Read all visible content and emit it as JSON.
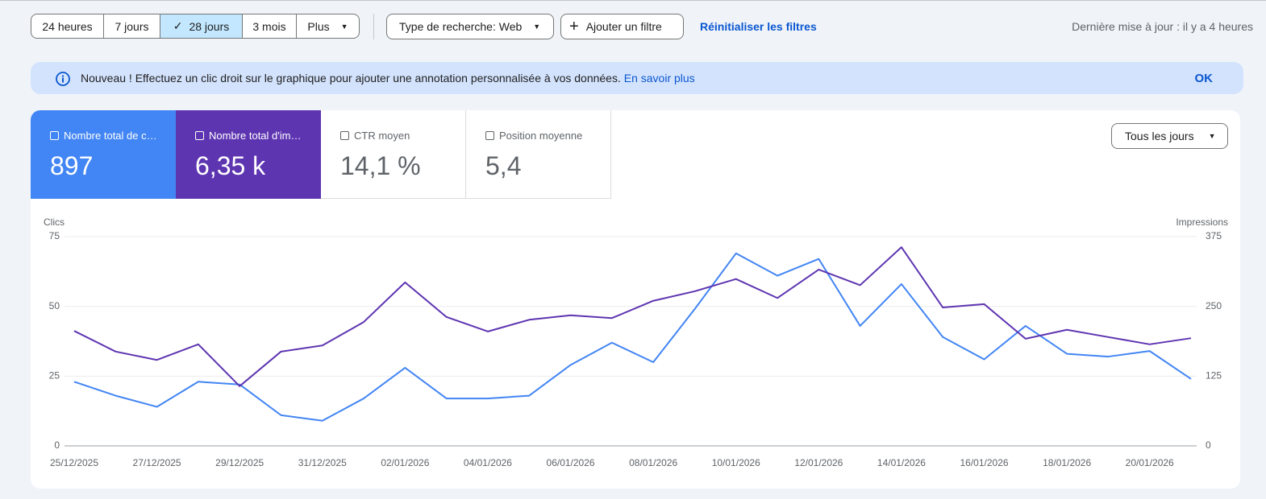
{
  "toolbar": {
    "ranges": [
      "24 heures",
      "7 jours",
      "28 jours",
      "3 mois",
      "Plus"
    ],
    "search_type": "Type de recherche: Web",
    "add_filter": "Ajouter un filtre",
    "reset": "Réinitialiser les filtres",
    "last_update": "Dernière mise à jour : il y a 4 heures"
  },
  "banner": {
    "text": "Nouveau ! Effectuez un clic droit sur le graphique pour ajouter une annotation personnalisée à vos données.",
    "link": "En savoir plus",
    "ok": "OK"
  },
  "cards": [
    {
      "label": "Nombre total de c…",
      "value": "897"
    },
    {
      "label": "Nombre total d'im…",
      "value": "6,35 k"
    },
    {
      "label": "CTR moyen",
      "value": "14,1 %"
    },
    {
      "label": "Position moyenne",
      "value": "5,4"
    }
  ],
  "granularity": "Tous les jours",
  "chart_data": {
    "type": "line",
    "y_label": "Clics",
    "y2_label": "Impressions",
    "categories": [
      "25/12/2025",
      null,
      "27/12/2025",
      null,
      "29/12/2025",
      null,
      "31/12/2025",
      null,
      "02/01/2026",
      null,
      "04/01/2026",
      null,
      "06/01/2026",
      null,
      "08/01/2026",
      null,
      "10/01/2026",
      null,
      "12/01/2026",
      null,
      "14/01/2026",
      null,
      "16/01/2026",
      null,
      "18/01/2026",
      null,
      "20/01/2026",
      null
    ],
    "ylim": [
      0,
      75
    ],
    "yticks": [
      0,
      25,
      50,
      75
    ],
    "y2lim": [
      0,
      375
    ],
    "y2ticks": [
      0,
      125,
      250,
      375
    ],
    "grid": true,
    "series": [
      {
        "color": "#4285f4",
        "values": [
          23,
          18,
          14,
          23,
          22,
          11,
          9,
          17,
          28,
          17,
          17,
          18,
          29,
          37,
          30,
          49,
          69,
          61,
          67,
          43,
          58,
          39,
          31,
          43,
          33,
          32,
          34,
          24
        ]
      },
      {
        "color": "#5e35b1",
        "axis": "y2",
        "values": [
          206,
          169,
          154,
          182,
          107,
          169,
          180,
          222,
          293,
          231,
          205,
          226,
          234,
          229,
          260,
          277,
          299,
          265,
          316,
          288,
          356,
          248,
          254,
          192,
          208,
          195,
          182,
          193
        ]
      }
    ]
  }
}
